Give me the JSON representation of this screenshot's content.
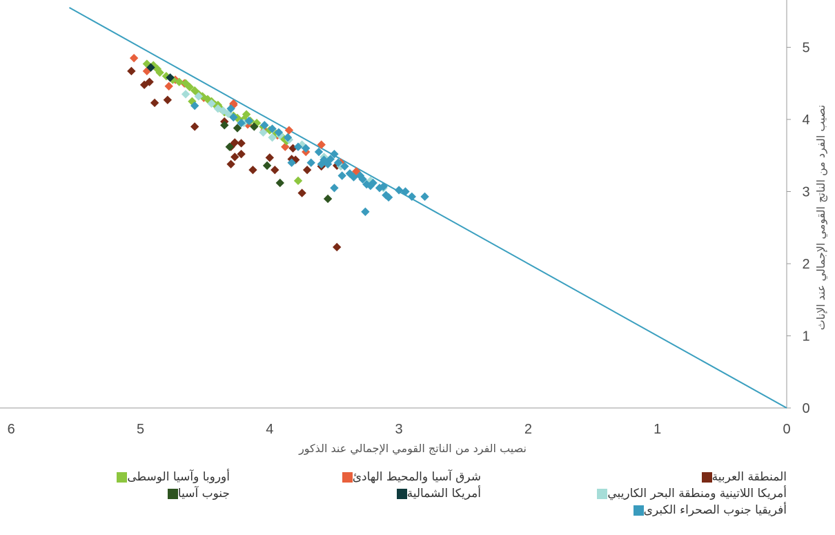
{
  "chart_data": {
    "type": "scatter",
    "xlabel": "نصيب الفرد من الناتج القومي الإجمالي عند الذكور",
    "ylabel": "نصيب الفرد من الناتج القومي الإجمالي عند الإناث",
    "xlim": [
      6,
      0
    ],
    "ylim": [
      0,
      5.55
    ],
    "x_ticks": [
      "6",
      "5",
      "4",
      "3",
      "2",
      "1",
      "0"
    ],
    "y_ticks": [
      "0",
      "1",
      "2",
      "3",
      "4",
      "5"
    ],
    "reference_line": {
      "from": [
        5.55,
        5.55
      ],
      "to": [
        0,
        0
      ],
      "color": "#3a9fbf"
    },
    "series": [
      {
        "name": "المنطقة العربية",
        "color": "#7a2a16",
        "points": [
          [
            5.07,
            4.67
          ],
          [
            4.97,
            4.48
          ],
          [
            4.93,
            4.52
          ],
          [
            4.89,
            4.23
          ],
          [
            4.79,
            4.27
          ],
          [
            4.58,
            3.9
          ],
          [
            4.35,
            3.97
          ],
          [
            4.3,
            3.62
          ],
          [
            4.27,
            3.48
          ],
          [
            4.3,
            3.38
          ],
          [
            4.27,
            3.68
          ],
          [
            4.22,
            3.67
          ],
          [
            4.22,
            3.52
          ],
          [
            4.13,
            3.3
          ],
          [
            4.0,
            3.47
          ],
          [
            3.96,
            3.3
          ],
          [
            3.83,
            3.45
          ],
          [
            3.8,
            3.44
          ],
          [
            3.82,
            3.6
          ],
          [
            3.75,
            2.98
          ],
          [
            3.71,
            3.3
          ],
          [
            3.48,
            3.36
          ],
          [
            3.48,
            2.23
          ],
          [
            3.6,
            3.35
          ]
        ]
      },
      {
        "name": "شرق آسيا والمحيط الهادئ",
        "color": "#e8603c",
        "points": [
          [
            5.05,
            4.85
          ],
          [
            4.95,
            4.67
          ],
          [
            4.78,
            4.46
          ],
          [
            4.73,
            4.55
          ],
          [
            4.66,
            4.5
          ],
          [
            4.51,
            4.3
          ],
          [
            4.28,
            4.2
          ],
          [
            4.17,
            3.93
          ],
          [
            4.04,
            3.85
          ],
          [
            3.94,
            3.78
          ],
          [
            3.88,
            3.62
          ],
          [
            3.72,
            3.55
          ],
          [
            3.6,
            3.65
          ],
          [
            3.45,
            3.4
          ],
          [
            3.33,
            3.28
          ],
          [
            3.85,
            3.85
          ],
          [
            4.28,
            4.22
          ]
        ]
      },
      {
        "name": "أوروبا وآسيا الوسطى",
        "color": "#8dc63f",
        "points": [
          [
            4.95,
            4.77
          ],
          [
            4.9,
            4.75
          ],
          [
            4.87,
            4.7
          ],
          [
            4.85,
            4.65
          ],
          [
            4.8,
            4.6
          ],
          [
            4.75,
            4.55
          ],
          [
            4.7,
            4.52
          ],
          [
            4.65,
            4.5
          ],
          [
            4.62,
            4.45
          ],
          [
            4.58,
            4.4
          ],
          [
            4.55,
            4.35
          ],
          [
            4.52,
            4.32
          ],
          [
            4.48,
            4.28
          ],
          [
            4.45,
            4.25
          ],
          [
            4.42,
            4.2
          ],
          [
            4.38,
            4.15
          ],
          [
            4.35,
            4.1
          ],
          [
            4.32,
            4.08
          ],
          [
            4.28,
            4.05
          ],
          [
            4.25,
            4.02
          ],
          [
            4.2,
            4.0
          ],
          [
            4.15,
            3.98
          ],
          [
            4.1,
            3.95
          ],
          [
            4.05,
            3.9
          ],
          [
            4.0,
            3.85
          ],
          [
            3.95,
            3.8
          ],
          [
            3.9,
            3.75
          ],
          [
            3.87,
            3.7
          ],
          [
            3.78,
            3.15
          ],
          [
            4.6,
            4.25
          ],
          [
            4.4,
            4.2
          ],
          [
            4.18,
            4.07
          ]
        ]
      },
      {
        "name": "جنوب آسيا",
        "color": "#2e5420",
        "points": [
          [
            4.35,
            3.92
          ],
          [
            4.31,
            3.62
          ],
          [
            4.25,
            3.88
          ],
          [
            4.02,
            3.36
          ],
          [
            3.92,
            3.12
          ],
          [
            3.55,
            2.9
          ],
          [
            4.12,
            3.9
          ]
        ]
      },
      {
        "name": "أمريكا اللاتينية ومنطقة البحر الكاريبي",
        "color": "#a6ddd8",
        "points": [
          [
            4.65,
            4.35
          ],
          [
            4.55,
            4.32
          ],
          [
            4.45,
            4.22
          ],
          [
            4.4,
            4.15
          ],
          [
            4.36,
            4.12
          ],
          [
            4.32,
            4.08
          ],
          [
            4.2,
            3.95
          ],
          [
            4.05,
            3.82
          ],
          [
            3.98,
            3.75
          ],
          [
            3.92,
            3.78
          ],
          [
            3.85,
            3.72
          ],
          [
            3.75,
            3.65
          ],
          [
            3.58,
            3.48
          ],
          [
            3.45,
            3.35
          ],
          [
            3.3,
            3.22
          ],
          [
            3.22,
            3.15
          ],
          [
            3.12,
            3.05
          ]
        ]
      },
      {
        "name": "أمريكا الشمالية",
        "color": "#0f3b3d",
        "points": [
          [
            4.92,
            4.72
          ],
          [
            4.77,
            4.58
          ]
        ]
      },
      {
        "name": "أفريقيا جنوب الصحراء الكبرى",
        "color": "#3a9bbd",
        "points": [
          [
            4.58,
            4.19
          ],
          [
            4.3,
            4.15
          ],
          [
            4.22,
            3.95
          ],
          [
            4.28,
            4.03
          ],
          [
            4.16,
            3.98
          ],
          [
            4.04,
            3.92
          ],
          [
            3.98,
            3.87
          ],
          [
            3.93,
            3.82
          ],
          [
            3.86,
            3.75
          ],
          [
            3.83,
            3.4
          ],
          [
            3.78,
            3.62
          ],
          [
            3.72,
            3.6
          ],
          [
            3.68,
            3.4
          ],
          [
            3.62,
            3.55
          ],
          [
            3.58,
            3.44
          ],
          [
            3.55,
            3.38
          ],
          [
            3.53,
            3.45
          ],
          [
            3.5,
            3.52
          ],
          [
            3.47,
            3.4
          ],
          [
            3.44,
            3.22
          ],
          [
            3.42,
            3.35
          ],
          [
            3.38,
            3.25
          ],
          [
            3.35,
            3.2
          ],
          [
            3.3,
            3.22
          ],
          [
            3.28,
            3.17
          ],
          [
            3.25,
            3.1
          ],
          [
            3.22,
            3.08
          ],
          [
            3.2,
            3.12
          ],
          [
            3.15,
            3.05
          ],
          [
            3.12,
            3.07
          ],
          [
            3.1,
            2.95
          ],
          [
            3.08,
            2.92
          ],
          [
            3.0,
            3.02
          ],
          [
            2.95,
            3.0
          ],
          [
            2.9,
            2.93
          ],
          [
            2.8,
            2.93
          ],
          [
            3.26,
            2.72
          ],
          [
            3.5,
            3.05
          ],
          [
            3.6,
            3.38
          ]
        ]
      }
    ],
    "legend": {
      "placement": "bottom"
    }
  }
}
